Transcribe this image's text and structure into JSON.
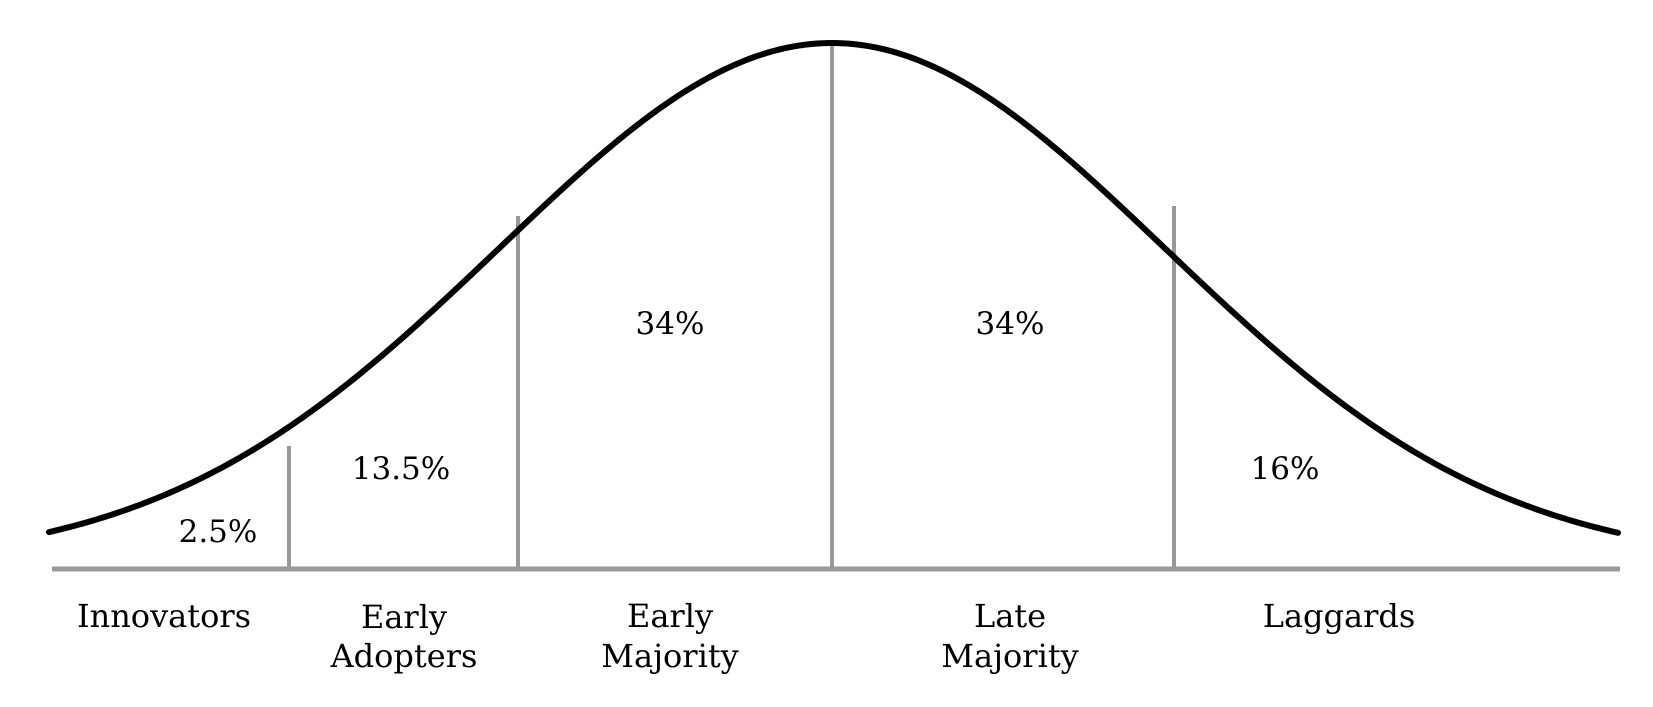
{
  "colors": {
    "curve": "#000000",
    "dividers": "#999999",
    "baseline": "#999999",
    "text": "#000000"
  },
  "segments": [
    {
      "id": "innovators",
      "label_lines": [
        "Innovators"
      ],
      "percent": "2.5%"
    },
    {
      "id": "early-adopters",
      "label_lines": [
        "Early",
        "Adopters"
      ],
      "percent": "13.5%"
    },
    {
      "id": "early-majority",
      "label_lines": [
        "Early",
        "Majority"
      ],
      "percent": "34%"
    },
    {
      "id": "late-majority",
      "label_lines": [
        "Late",
        "Majority"
      ],
      "percent": "34%"
    },
    {
      "id": "laggards",
      "label_lines": [
        "Laggards"
      ],
      "percent": "16%"
    }
  ]
}
